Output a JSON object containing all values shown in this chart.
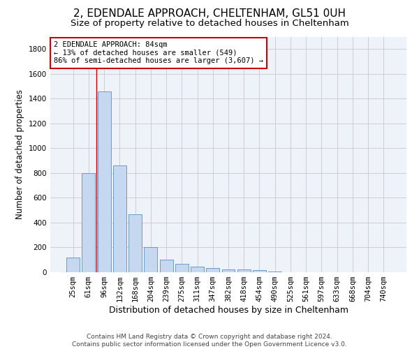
{
  "title": "2, EDENDALE APPROACH, CHELTENHAM, GL51 0UH",
  "subtitle": "Size of property relative to detached houses in Cheltenham",
  "xlabel": "Distribution of detached houses by size in Cheltenham",
  "ylabel": "Number of detached properties",
  "footer_line1": "Contains HM Land Registry data © Crown copyright and database right 2024.",
  "footer_line2": "Contains public sector information licensed under the Open Government Licence v3.0.",
  "categories": [
    "25sqm",
    "61sqm",
    "96sqm",
    "132sqm",
    "168sqm",
    "204sqm",
    "239sqm",
    "275sqm",
    "311sqm",
    "347sqm",
    "382sqm",
    "418sqm",
    "454sqm",
    "490sqm",
    "525sqm",
    "561sqm",
    "597sqm",
    "633sqm",
    "668sqm",
    "704sqm",
    "740sqm"
  ],
  "values": [
    120,
    800,
    1460,
    860,
    470,
    200,
    100,
    65,
    45,
    35,
    25,
    20,
    15,
    5,
    0,
    0,
    0,
    0,
    0,
    0,
    0
  ],
  "bar_color": "#c5d8f0",
  "bar_edge_color": "#5a8fc2",
  "grid_color": "#c8c8c8",
  "background_color": "#ffffff",
  "ax_background_color": "#eef3fa",
  "property_line_bin": 1.5,
  "annotation_text": "2 EDENDALE APPROACH: 84sqm\n← 13% of detached houses are smaller (549)\n86% of semi-detached houses are larger (3,607) →",
  "annotation_box_color": "#cc0000",
  "ylim": [
    0,
    1900
  ],
  "yticks": [
    0,
    200,
    400,
    600,
    800,
    1000,
    1200,
    1400,
    1600,
    1800
  ],
  "title_fontsize": 11,
  "subtitle_fontsize": 9.5,
  "xlabel_fontsize": 9,
  "ylabel_fontsize": 8.5,
  "tick_fontsize": 7.5,
  "annotation_fontsize": 7.5,
  "footer_fontsize": 6.5
}
